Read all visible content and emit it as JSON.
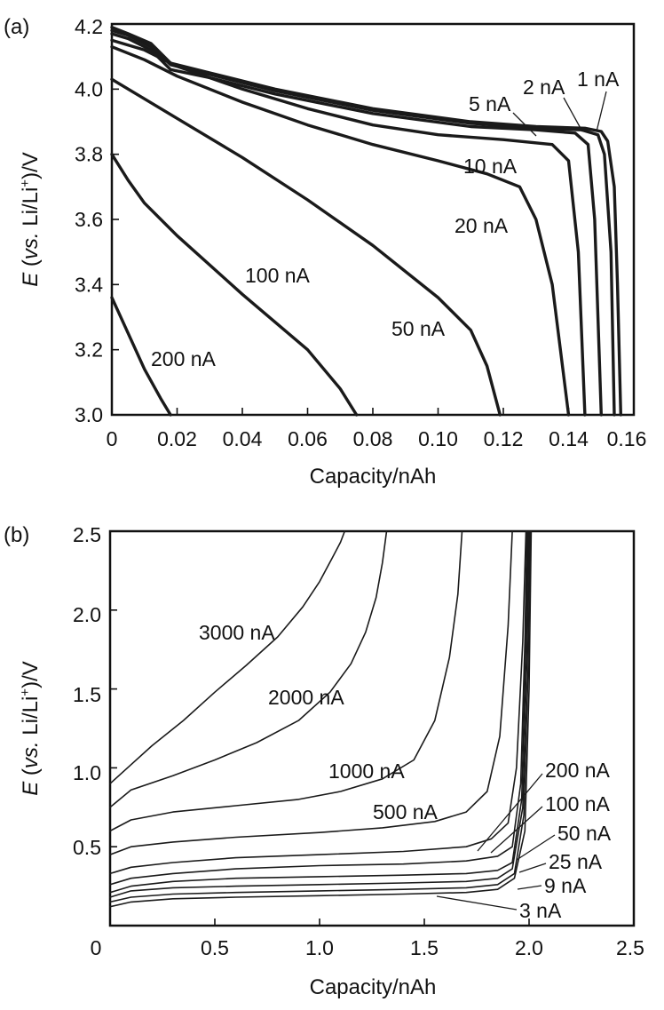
{
  "chart_data": [
    {
      "type": "line",
      "panel_label": "(a)",
      "xlabel": "Capacity/nAh",
      "ylabel": {
        "italic": "E",
        "open": " (",
        "italic2": "vs.",
        "rest": " Li/Li",
        "sup": "+",
        "close": ")/V"
      },
      "xlim": [
        0,
        0.16
      ],
      "ylim": [
        3.0,
        4.2
      ],
      "x_ticks": [
        "0",
        "0.02",
        "0.04",
        "0.06",
        "0.08",
        "0.10",
        "0.12",
        "0.14",
        "0.16"
      ],
      "y_ticks": [
        "3.0",
        "3.2",
        "3.4",
        "3.6",
        "3.8",
        "4.0",
        "4.2"
      ],
      "series": [
        {
          "name": "1 nA",
          "x": [
            0,
            0.005,
            0.012,
            0.018,
            0.03,
            0.05,
            0.08,
            0.11,
            0.13,
            0.145,
            0.15,
            0.152,
            0.154,
            0.155,
            0.156
          ],
          "y": [
            4.19,
            4.17,
            4.14,
            4.08,
            4.05,
            4.0,
            3.94,
            3.9,
            3.885,
            3.88,
            3.87,
            3.84,
            3.7,
            3.4,
            3.0
          ]
        },
        {
          "name": "2 nA",
          "x": [
            0,
            0.005,
            0.012,
            0.018,
            0.03,
            0.05,
            0.08,
            0.11,
            0.13,
            0.144,
            0.149,
            0.151,
            0.153,
            0.154
          ],
          "y": [
            4.18,
            4.165,
            4.13,
            4.075,
            4.045,
            3.995,
            3.935,
            3.895,
            3.88,
            3.875,
            3.86,
            3.8,
            3.5,
            3.0
          ]
        },
        {
          "name": "5 nA",
          "x": [
            0,
            0.005,
            0.012,
            0.018,
            0.03,
            0.05,
            0.08,
            0.11,
            0.13,
            0.142,
            0.146,
            0.148,
            0.15
          ],
          "y": [
            4.17,
            4.155,
            4.12,
            4.06,
            4.035,
            3.985,
            3.925,
            3.885,
            3.875,
            3.865,
            3.83,
            3.6,
            3.0
          ]
        },
        {
          "name": "10 nA",
          "x": [
            0,
            0.01,
            0.02,
            0.04,
            0.06,
            0.08,
            0.1,
            0.12,
            0.135,
            0.14,
            0.143,
            0.145
          ],
          "y": [
            4.15,
            4.12,
            4.07,
            4.0,
            3.94,
            3.89,
            3.86,
            3.845,
            3.83,
            3.78,
            3.5,
            3.0
          ]
        },
        {
          "name": "20 nA",
          "x": [
            0,
            0.01,
            0.02,
            0.04,
            0.06,
            0.08,
            0.1,
            0.115,
            0.125,
            0.13,
            0.135,
            0.14
          ],
          "y": [
            4.13,
            4.09,
            4.04,
            3.96,
            3.89,
            3.83,
            3.78,
            3.74,
            3.7,
            3.6,
            3.4,
            3.0
          ]
        },
        {
          "name": "50 nA",
          "x": [
            0,
            0.01,
            0.02,
            0.04,
            0.06,
            0.08,
            0.1,
            0.11,
            0.115,
            0.119
          ],
          "y": [
            4.03,
            3.97,
            3.91,
            3.79,
            3.66,
            3.52,
            3.36,
            3.26,
            3.15,
            3.0
          ]
        },
        {
          "name": "100 nA",
          "x": [
            0,
            0.005,
            0.01,
            0.02,
            0.04,
            0.06,
            0.07,
            0.075
          ],
          "y": [
            3.8,
            3.72,
            3.65,
            3.55,
            3.37,
            3.2,
            3.08,
            3.0
          ]
        },
        {
          "name": "200 nA",
          "x": [
            0,
            0.005,
            0.01,
            0.015,
            0.018
          ],
          "y": [
            3.36,
            3.25,
            3.14,
            3.05,
            3.0
          ]
        }
      ]
    },
    {
      "type": "line",
      "panel_label": "(b)",
      "xlabel": "Capacity/nAh",
      "ylabel": {
        "italic": "E",
        "open": " (",
        "italic2": "vs.",
        "rest": " Li/Li",
        "sup": "+",
        "close": ")/V"
      },
      "xlim": [
        0,
        2.5
      ],
      "ylim": [
        0,
        2.5
      ],
      "x_ticks": [
        "0",
        "0.5",
        "1.0",
        "1.5",
        "2.0",
        "2.5"
      ],
      "y_ticks": [
        "0.5",
        "1.0",
        "1.5",
        "2.0",
        "2.5"
      ],
      "series": [
        {
          "name": "3 nA",
          "x": [
            0,
            0.1,
            0.3,
            0.6,
            1.0,
            1.4,
            1.7,
            1.85,
            1.93,
            1.98,
            2.0,
            2.01
          ],
          "y": [
            0.12,
            0.15,
            0.17,
            0.18,
            0.19,
            0.2,
            0.21,
            0.23,
            0.3,
            0.6,
            1.5,
            2.5
          ]
        },
        {
          "name": "9 nA",
          "x": [
            0,
            0.1,
            0.3,
            0.6,
            1.0,
            1.4,
            1.7,
            1.85,
            1.93,
            1.975,
            1.995,
            2.005
          ],
          "y": [
            0.15,
            0.18,
            0.2,
            0.21,
            0.22,
            0.23,
            0.24,
            0.26,
            0.33,
            0.7,
            1.6,
            2.5
          ]
        },
        {
          "name": "25 nA",
          "x": [
            0,
            0.1,
            0.3,
            0.6,
            1.0,
            1.4,
            1.7,
            1.85,
            1.92,
            1.97,
            1.99,
            2.0
          ],
          "y": [
            0.18,
            0.22,
            0.24,
            0.25,
            0.26,
            0.27,
            0.28,
            0.3,
            0.36,
            0.75,
            1.7,
            2.5
          ]
        },
        {
          "name": "50 nA",
          "x": [
            0,
            0.1,
            0.3,
            0.6,
            1.0,
            1.4,
            1.7,
            1.85,
            1.92,
            1.965,
            1.985,
            1.995
          ],
          "y": [
            0.21,
            0.25,
            0.28,
            0.3,
            0.31,
            0.32,
            0.33,
            0.35,
            0.4,
            0.8,
            1.8,
            2.5
          ]
        },
        {
          "name": "100 nA",
          "x": [
            0,
            0.1,
            0.3,
            0.6,
            1.0,
            1.4,
            1.7,
            1.85,
            1.92,
            1.96,
            1.98,
            1.99
          ],
          "y": [
            0.26,
            0.3,
            0.33,
            0.36,
            0.38,
            0.39,
            0.41,
            0.44,
            0.5,
            0.9,
            1.8,
            2.5
          ]
        },
        {
          "name": "200 nA",
          "x": [
            0,
            0.1,
            0.3,
            0.6,
            1.0,
            1.4,
            1.7,
            1.82,
            1.9,
            1.94,
            1.97,
            1.985
          ],
          "y": [
            0.33,
            0.37,
            0.4,
            0.43,
            0.45,
            0.47,
            0.5,
            0.55,
            0.65,
            1.0,
            1.8,
            2.5
          ]
        },
        {
          "name": "500 nA",
          "x": [
            0,
            0.1,
            0.3,
            0.6,
            1.0,
            1.3,
            1.55,
            1.7,
            1.8,
            1.86,
            1.9,
            1.92
          ],
          "y": [
            0.45,
            0.5,
            0.53,
            0.56,
            0.59,
            0.62,
            0.66,
            0.72,
            0.85,
            1.2,
            1.9,
            2.5
          ]
        },
        {
          "name": "1000 nA",
          "x": [
            0,
            0.1,
            0.3,
            0.6,
            0.9,
            1.1,
            1.3,
            1.45,
            1.55,
            1.62,
            1.66,
            1.68
          ],
          "y": [
            0.6,
            0.67,
            0.72,
            0.76,
            0.8,
            0.85,
            0.93,
            1.05,
            1.3,
            1.7,
            2.1,
            2.5
          ]
        },
        {
          "name": "2000 nA",
          "x": [
            0,
            0.1,
            0.3,
            0.5,
            0.7,
            0.9,
            1.05,
            1.15,
            1.22,
            1.27,
            1.3,
            1.32
          ],
          "y": [
            0.75,
            0.86,
            0.95,
            1.05,
            1.16,
            1.3,
            1.48,
            1.66,
            1.86,
            2.08,
            2.3,
            2.5
          ]
        },
        {
          "name": "3000 nA",
          "x": [
            0,
            0.1,
            0.2,
            0.35,
            0.5,
            0.65,
            0.8,
            0.92,
            1.0,
            1.06,
            1.1,
            1.12
          ],
          "y": [
            0.9,
            1.02,
            1.14,
            1.3,
            1.48,
            1.65,
            1.83,
            2.02,
            2.18,
            2.33,
            2.43,
            2.5
          ]
        }
      ]
    }
  ],
  "curve_labels": {
    "a": [
      "1 nA",
      "2 nA",
      "5 nA",
      "10 nA",
      "20 nA",
      "50 nA",
      "100 nA",
      "200 nA"
    ],
    "b": [
      "3000 nA",
      "2000 nA",
      "1000 nA",
      "500 nA",
      "200 nA",
      "100 nA",
      "50 nA",
      "25 nA",
      "9 nA",
      "3 nA"
    ]
  }
}
